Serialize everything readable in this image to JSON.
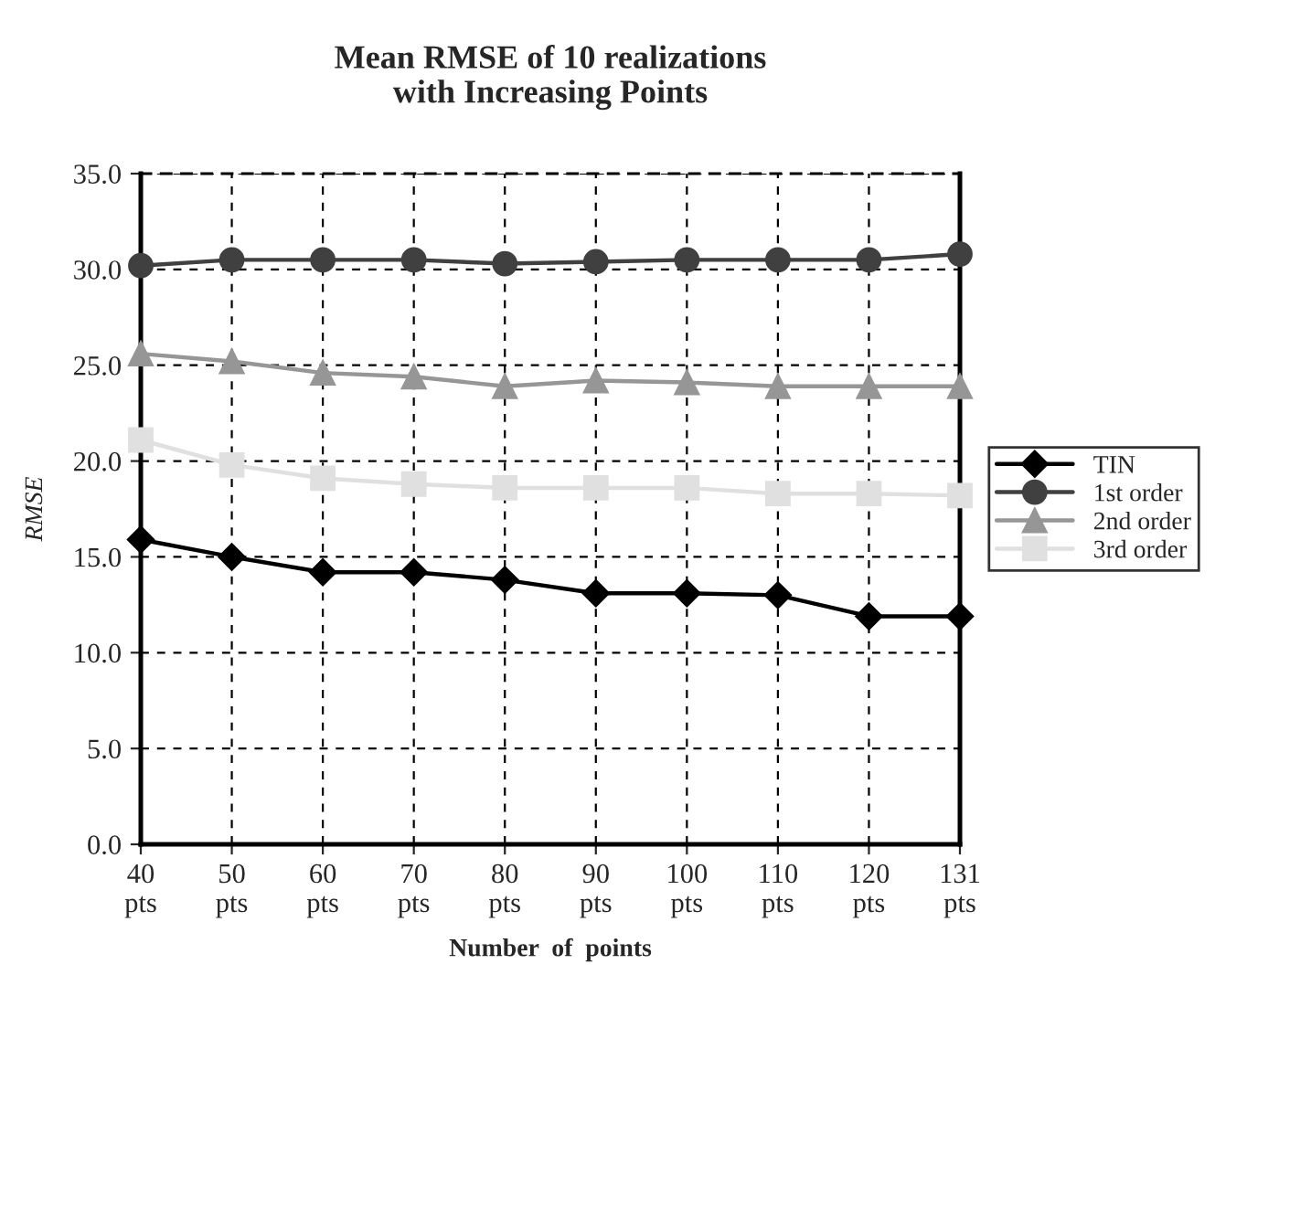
{
  "chart_data": {
    "type": "line",
    "title": "Mean RMSE of 10 realizations\nwith Increasing Points",
    "xlabel": "Number  of  points",
    "ylabel": "RMSE",
    "categories": [
      "40\npts",
      "50\npts",
      "60\npts",
      "70\npts",
      "80\npts",
      "90\npts",
      "100\npts",
      "110\npts",
      "120\npts",
      "131\npts"
    ],
    "series": [
      {
        "name": "TIN",
        "color": "#000000",
        "marker": "diamond",
        "values": [
          15.9,
          15.0,
          14.2,
          14.2,
          13.8,
          13.1,
          13.1,
          13.0,
          11.9,
          11.9
        ]
      },
      {
        "name": "1st order",
        "color": "#404040",
        "marker": "circle",
        "values": [
          30.2,
          30.5,
          30.5,
          30.5,
          30.3,
          30.4,
          30.5,
          30.5,
          30.5,
          30.8
        ]
      },
      {
        "name": "2nd order",
        "color": "#969696",
        "marker": "triangle",
        "values": [
          25.6,
          25.2,
          24.6,
          24.4,
          23.9,
          24.2,
          24.1,
          23.9,
          23.9,
          23.9
        ]
      },
      {
        "name": "3rd order",
        "color": "#e0e0e0",
        "marker": "square",
        "values": [
          21.1,
          19.8,
          19.1,
          18.8,
          18.6,
          18.6,
          18.6,
          18.3,
          18.3,
          18.2
        ]
      }
    ],
    "ylim": [
      0,
      35
    ],
    "yticks": [
      {
        "value": 0,
        "label": "0.0"
      },
      {
        "value": 5,
        "label": "5.0"
      },
      {
        "value": 10,
        "label": "10.0"
      },
      {
        "value": 15,
        "label": "15.0"
      },
      {
        "value": 20,
        "label": "20.0"
      },
      {
        "value": 25,
        "label": "25.0"
      },
      {
        "value": 30,
        "label": "30.0"
      },
      {
        "value": 35,
        "label": "35.0"
      }
    ],
    "grid": true,
    "legend": "right",
    "line_style": "solid"
  }
}
